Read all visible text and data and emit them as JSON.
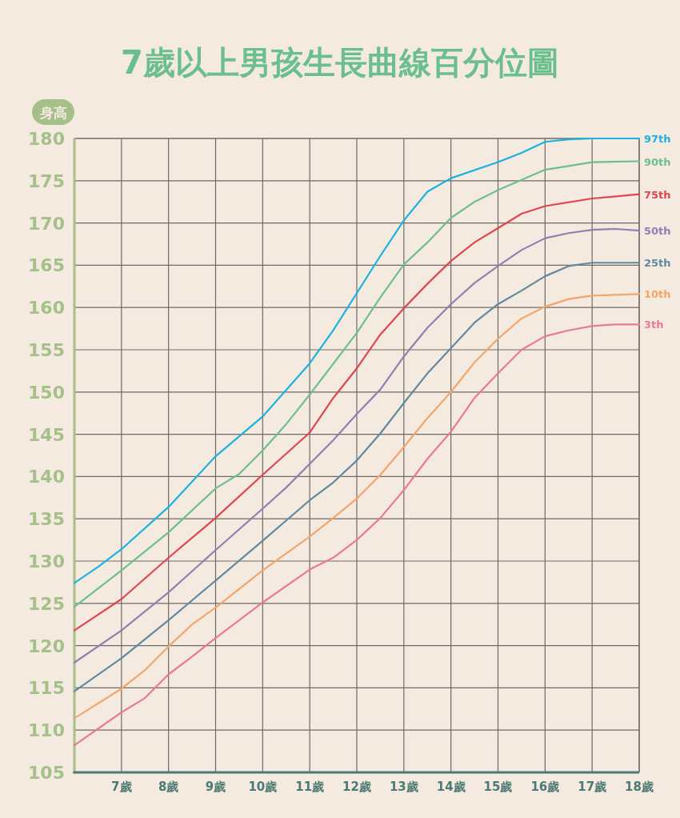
{
  "chart_data": {
    "type": "line",
    "title": "7歲以上男孩生長曲線百分位圖",
    "ylabel": "身高",
    "xlim": [
      6,
      18
    ],
    "ylim": [
      105,
      180
    ],
    "xticks": [
      {
        "value": 7,
        "label": "7歲"
      },
      {
        "value": 8,
        "label": "8歲"
      },
      {
        "value": 9,
        "label": "9歲"
      },
      {
        "value": 10,
        "label": "10歲"
      },
      {
        "value": 11,
        "label": "11歲"
      },
      {
        "value": 12,
        "label": "12歲"
      },
      {
        "value": 13,
        "label": "13歲"
      },
      {
        "value": 14,
        "label": "14歲"
      },
      {
        "value": 15,
        "label": "15歲"
      },
      {
        "value": 16,
        "label": "16歲"
      },
      {
        "value": 17,
        "label": "17歲"
      },
      {
        "value": 18,
        "label": "18歲"
      }
    ],
    "yticks": [
      105,
      110,
      115,
      120,
      125,
      130,
      135,
      140,
      145,
      150,
      155,
      160,
      165,
      170,
      175,
      180
    ],
    "grid": true,
    "series": [
      {
        "name": "97th",
        "color": "#1ab3e0",
        "x": [
          6,
          6.5,
          7,
          8,
          9,
          10,
          11,
          11.5,
          12,
          12.5,
          13,
          13.5,
          14,
          15,
          15.5,
          16,
          16.5,
          17,
          18
        ],
        "values": [
          127.4,
          129.3,
          131.4,
          136.4,
          142.4,
          147.1,
          153.4,
          157.3,
          161.7,
          166.1,
          170.3,
          173.7,
          175.3,
          177.2,
          178.3,
          179.6,
          179.9,
          180,
          180
        ]
      },
      {
        "name": "90th",
        "color": "#6cbf90",
        "x": [
          6,
          7,
          8,
          9,
          9.5,
          10,
          10.5,
          11,
          12,
          12.5,
          13,
          13.5,
          14,
          14.5,
          15,
          15.5,
          16,
          17,
          18
        ],
        "values": [
          124.6,
          128.9,
          133.4,
          138.6,
          140.3,
          143.1,
          146.2,
          149.7,
          157,
          161.2,
          165.1,
          167.7,
          170.6,
          172.5,
          173.9,
          175.1,
          176.3,
          177.2,
          177.3
        ]
      },
      {
        "name": "75th",
        "color": "#e0464f",
        "x": [
          6,
          7,
          8,
          9,
          10,
          11,
          11.5,
          12,
          12.5,
          13,
          13.5,
          14,
          14.5,
          15,
          15.5,
          16,
          17,
          18
        ],
        "values": [
          121.8,
          125.5,
          130.4,
          135.1,
          140.2,
          145.2,
          149.3,
          152.8,
          156.8,
          159.9,
          162.8,
          165.5,
          167.7,
          169.4,
          171.1,
          172,
          172.9,
          173.4
        ]
      },
      {
        "name": "50th",
        "color": "#9a7bb0",
        "x": [
          6,
          7,
          8,
          9,
          10,
          10.5,
          11,
          11.5,
          12,
          12.5,
          13,
          13.5,
          14,
          14.5,
          15,
          15.5,
          16,
          16.5,
          17,
          17.5,
          18
        ],
        "values": [
          118,
          121.8,
          126.3,
          131.3,
          136.2,
          138.7,
          141.5,
          144.3,
          147.4,
          150.3,
          154.2,
          157.6,
          160.4,
          162.9,
          164.9,
          166.8,
          168.2,
          168.8,
          169.2,
          169.3,
          169.1
        ]
      },
      {
        "name": "25th",
        "color": "#5f8aa0",
        "x": [
          6,
          7,
          8,
          9,
          10,
          11,
          11.5,
          12,
          12.5,
          13,
          13.5,
          14,
          14.5,
          15,
          15.5,
          16,
          16.5,
          17,
          18
        ],
        "values": [
          114.6,
          118.5,
          123,
          127.7,
          132.4,
          137.2,
          139.3,
          141.9,
          145.1,
          148.7,
          152.2,
          155.2,
          158.2,
          160.4,
          162,
          163.7,
          164.9,
          165.3,
          165.3
        ]
      },
      {
        "name": "10th",
        "color": "#f2a66a",
        "x": [
          6,
          7,
          7.5,
          8,
          8.5,
          9,
          10,
          11,
          11.5,
          12,
          12.5,
          13,
          13.5,
          14,
          14.5,
          15,
          15.5,
          16,
          16.5,
          17,
          18
        ],
        "values": [
          111.4,
          114.9,
          117.1,
          119.9,
          122.5,
          124.5,
          128.9,
          132.9,
          135.1,
          137.4,
          140.2,
          143.5,
          146.9,
          150,
          153.5,
          156.3,
          158.7,
          160.1,
          161,
          161.4,
          161.6
        ]
      },
      {
        "name": "3th",
        "color": "#e87a95",
        "x": [
          6,
          7,
          7.5,
          8,
          8.5,
          9,
          10,
          11,
          11.5,
          12,
          12.5,
          13,
          13.5,
          14,
          14.5,
          15,
          15.5,
          16,
          16.5,
          17,
          17.5,
          18
        ],
        "values": [
          108.2,
          112.1,
          113.8,
          116.6,
          118.7,
          120.9,
          125.1,
          129,
          130.4,
          132.5,
          135.1,
          138.4,
          142.1,
          145.3,
          149.3,
          152.2,
          155,
          156.6,
          157.3,
          157.8,
          158,
          158
        ]
      }
    ]
  }
}
